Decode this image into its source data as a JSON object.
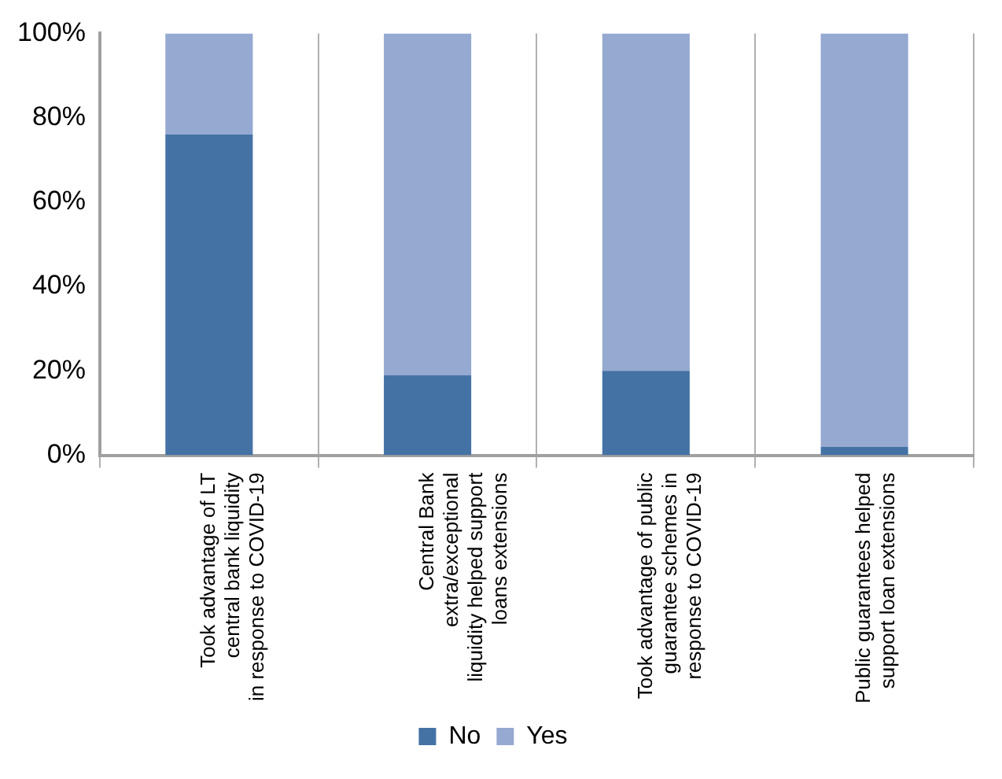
{
  "chart_data": {
    "type": "bar",
    "stacked": true,
    "categories": [
      "Took advantage of LT central bank liquidity in response to COVID-19",
      "Central Bank extra/exceptional liquidity helped support loans extensions",
      "Took advantage of public guarantee schemes in response to COVID-19",
      "Public guarantees helped support loan extensions"
    ],
    "series": [
      {
        "name": "No",
        "color": "#4472a5",
        "values": [
          76,
          19,
          20,
          2
        ]
      },
      {
        "name": "Yes",
        "color": "#95a9d1",
        "values": [
          24,
          81,
          80,
          98
        ]
      }
    ],
    "ylim": [
      0,
      100
    ],
    "yticks": [
      {
        "value": 0,
        "label": "0%"
      },
      {
        "value": 20,
        "label": "20%"
      },
      {
        "value": 40,
        "label": "40%"
      },
      {
        "value": 60,
        "label": "60%"
      },
      {
        "value": 80,
        "label": "80%"
      },
      {
        "value": 100,
        "label": "100%"
      }
    ],
    "grid": "x",
    "legend": "bottom"
  }
}
